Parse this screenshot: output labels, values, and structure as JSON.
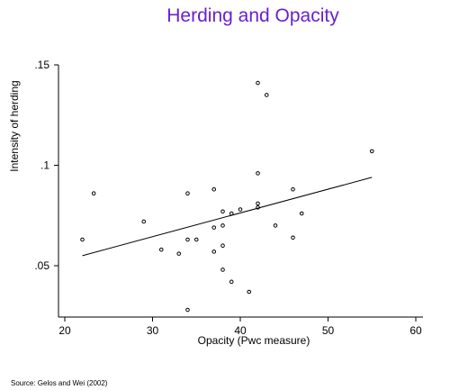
{
  "chart_data": {
    "type": "scatter",
    "title": "Herding and Opacity",
    "xlabel": "Opacity (Pwc measure)",
    "ylabel": "Intensity of herding",
    "xlim": [
      20,
      60
    ],
    "ylim": [
      0.025,
      0.155
    ],
    "x_ticks": [
      {
        "value": 20,
        "label": "20"
      },
      {
        "value": 30,
        "label": "30"
      },
      {
        "value": 40,
        "label": "40"
      },
      {
        "value": 50,
        "label": "50"
      },
      {
        "value": 60,
        "label": "60"
      }
    ],
    "y_ticks": [
      {
        "value": 0.05,
        "label": ".05"
      },
      {
        "value": 0.1,
        "label": ".1"
      },
      {
        "value": 0.15,
        "label": ".15"
      }
    ],
    "points": [
      {
        "x": 22,
        "y": 0.063
      },
      {
        "x": 23.3,
        "y": 0.086
      },
      {
        "x": 29,
        "y": 0.072
      },
      {
        "x": 31,
        "y": 0.058
      },
      {
        "x": 33,
        "y": 0.056
      },
      {
        "x": 34,
        "y": 0.086
      },
      {
        "x": 34,
        "y": 0.063
      },
      {
        "x": 34,
        "y": 0.028
      },
      {
        "x": 35,
        "y": 0.063
      },
      {
        "x": 37,
        "y": 0.088
      },
      {
        "x": 37,
        "y": 0.069
      },
      {
        "x": 37,
        "y": 0.057
      },
      {
        "x": 38,
        "y": 0.077
      },
      {
        "x": 38,
        "y": 0.07
      },
      {
        "x": 38,
        "y": 0.06
      },
      {
        "x": 38,
        "y": 0.048
      },
      {
        "x": 39,
        "y": 0.076
      },
      {
        "x": 39,
        "y": 0.042
      },
      {
        "x": 40,
        "y": 0.078
      },
      {
        "x": 41,
        "y": 0.037
      },
      {
        "x": 42,
        "y": 0.141
      },
      {
        "x": 42,
        "y": 0.096
      },
      {
        "x": 42,
        "y": 0.081
      },
      {
        "x": 42,
        "y": 0.079
      },
      {
        "x": 43,
        "y": 0.135
      },
      {
        "x": 44,
        "y": 0.07
      },
      {
        "x": 46,
        "y": 0.088
      },
      {
        "x": 46,
        "y": 0.064
      },
      {
        "x": 47,
        "y": 0.076
      },
      {
        "x": 55,
        "y": 0.107
      }
    ],
    "fit_line": [
      {
        "x": 22,
        "y": 0.055
      },
      {
        "x": 55,
        "y": 0.094
      }
    ],
    "source": "Source: Gelos and Wei (2002)",
    "colors": {
      "title": "#6a1fd0",
      "axis": "#000000",
      "points": "#000000"
    }
  }
}
